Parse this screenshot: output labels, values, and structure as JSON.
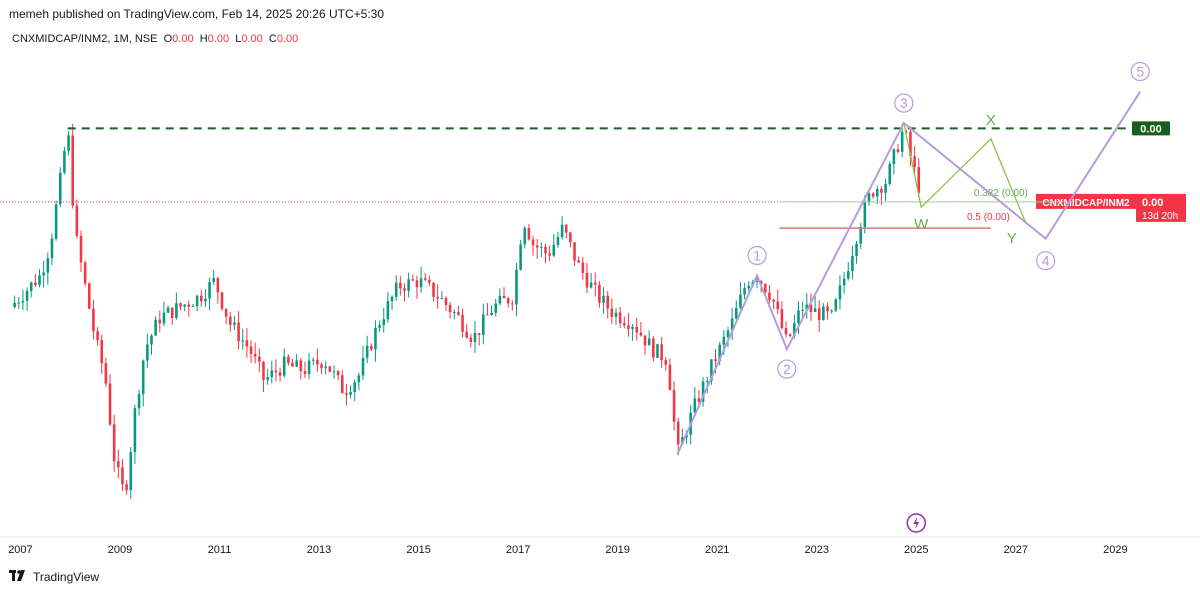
{
  "header": {
    "published": "memeh published on TradingView.com, Feb 14, 2025 20:26 UTC+5:30"
  },
  "legend": {
    "symbol": "CNXMIDCAP/INM2, 1M, NSE",
    "o_label": "O",
    "o_value": "0.00",
    "h_label": "H",
    "h_value": "0.00",
    "l_label": "L",
    "l_value": "0.00",
    "c_label": "C",
    "c_value": "0.00"
  },
  "footer": {
    "brand": "TradingView",
    "logo": "tradingview-logo-icon"
  },
  "colors": {
    "up": "#089981",
    "down": "#f23645",
    "wave": "#b39ddb",
    "wxy": "#6aa84f",
    "dashed": "#1b5e20",
    "price_label_bg": "#f23645",
    "fib_line": "#e57373"
  },
  "chart_data": {
    "type": "candlestick",
    "interval": "1M",
    "x_ticks": [
      "2007",
      "2009",
      "2011",
      "2013",
      "2015",
      "2017",
      "2019",
      "2021",
      "2023",
      "2025",
      "2027",
      "2029"
    ],
    "x_range": [
      2006.75,
      2030.5
    ],
    "y_scale": "relative (values read as approximate price-level index, no y tick values printed)",
    "series": [
      {
        "t": 2006.8,
        "close": 58
      },
      {
        "t": 2007.0,
        "close": 60
      },
      {
        "t": 2007.2,
        "close": 62
      },
      {
        "t": 2007.4,
        "close": 64
      },
      {
        "t": 2007.6,
        "close": 70
      },
      {
        "t": 2007.8,
        "close": 82
      },
      {
        "t": 2007.95,
        "close": 92
      },
      {
        "t": 2008.1,
        "close": 72
      },
      {
        "t": 2008.3,
        "close": 62
      },
      {
        "t": 2008.5,
        "close": 52
      },
      {
        "t": 2008.7,
        "close": 45
      },
      {
        "t": 2008.9,
        "close": 28
      },
      {
        "t": 2009.1,
        "close": 22
      },
      {
        "t": 2009.3,
        "close": 38
      },
      {
        "t": 2009.5,
        "close": 50
      },
      {
        "t": 2009.8,
        "close": 56
      },
      {
        "t": 2010.2,
        "close": 58
      },
      {
        "t": 2010.6,
        "close": 60
      },
      {
        "t": 2010.9,
        "close": 63
      },
      {
        "t": 2011.2,
        "close": 55
      },
      {
        "t": 2011.6,
        "close": 50
      },
      {
        "t": 2011.9,
        "close": 44
      },
      {
        "t": 2012.3,
        "close": 47
      },
      {
        "t": 2012.7,
        "close": 46
      },
      {
        "t": 2013.1,
        "close": 48
      },
      {
        "t": 2013.5,
        "close": 42
      },
      {
        "t": 2013.8,
        "close": 45
      },
      {
        "t": 2014.2,
        "close": 55
      },
      {
        "t": 2014.6,
        "close": 62
      },
      {
        "t": 2015.0,
        "close": 63
      },
      {
        "t": 2015.4,
        "close": 60
      },
      {
        "t": 2015.8,
        "close": 56
      },
      {
        "t": 2016.1,
        "close": 52
      },
      {
        "t": 2016.5,
        "close": 58
      },
      {
        "t": 2016.9,
        "close": 60
      },
      {
        "t": 2017.1,
        "close": 75
      },
      {
        "t": 2017.3,
        "close": 70
      },
      {
        "t": 2017.6,
        "close": 68
      },
      {
        "t": 2017.9,
        "close": 73
      },
      {
        "t": 2018.2,
        "close": 66
      },
      {
        "t": 2018.6,
        "close": 60
      },
      {
        "t": 2018.9,
        "close": 57
      },
      {
        "t": 2019.3,
        "close": 55
      },
      {
        "t": 2019.7,
        "close": 50
      },
      {
        "t": 2020.0,
        "close": 48
      },
      {
        "t": 2020.2,
        "close": 30
      },
      {
        "t": 2020.5,
        "close": 38
      },
      {
        "t": 2020.9,
        "close": 47
      },
      {
        "t": 2021.3,
        "close": 55
      },
      {
        "t": 2021.6,
        "close": 63
      },
      {
        "t": 2021.8,
        "close": 64
      },
      {
        "t": 2022.1,
        "close": 60
      },
      {
        "t": 2022.4,
        "close": 51
      },
      {
        "t": 2022.7,
        "close": 58
      },
      {
        "t": 2023.0,
        "close": 57
      },
      {
        "t": 2023.3,
        "close": 56
      },
      {
        "t": 2023.6,
        "close": 65
      },
      {
        "t": 2023.9,
        "close": 75
      },
      {
        "t": 2024.1,
        "close": 80
      },
      {
        "t": 2024.4,
        "close": 82
      },
      {
        "t": 2024.6,
        "close": 88
      },
      {
        "t": 2024.75,
        "close": 92
      },
      {
        "t": 2024.9,
        "close": 86
      },
      {
        "t": 2025.05,
        "close": 81
      },
      {
        "t": 2025.12,
        "close": 78
      }
    ],
    "horizontal_levels": [
      {
        "name": "prior high",
        "value": 92,
        "style": "dashed",
        "label": "0.00"
      }
    ],
    "fib_levels": [
      {
        "ratio": "0.382",
        "label": "0.382 (0.00)",
        "value": 78
      },
      {
        "ratio": "0.5",
        "label": "0.5 (0.00)",
        "value": 73
      }
    ],
    "elliott_wave": {
      "labels": [
        "1",
        "2",
        "3",
        "4",
        "5"
      ],
      "points": [
        {
          "label": "start",
          "t": 2020.2,
          "value": 30
        },
        {
          "label": "1",
          "t": 2021.8,
          "value": 64
        },
        {
          "label": "2",
          "t": 2022.4,
          "value": 50
        },
        {
          "label": "3",
          "t": 2024.75,
          "value": 93
        },
        {
          "label": "4",
          "t": 2027.6,
          "value": 71
        },
        {
          "label": "5",
          "t": 2029.5,
          "value": 99
        }
      ]
    },
    "correction_wxy": {
      "labels": [
        "W",
        "X",
        "Y"
      ],
      "points": [
        {
          "label": "3",
          "t": 2024.75,
          "value": 93
        },
        {
          "label": "W",
          "t": 2025.1,
          "value": 77
        },
        {
          "label": "X",
          "t": 2026.5,
          "value": 90
        },
        {
          "label": "Y",
          "t": 2027.2,
          "value": 74
        }
      ]
    },
    "price_label": {
      "symbol": "CNXMIDCAP/INM2",
      "value": "0.00",
      "countdown": "13d 20h"
    },
    "current_price_line": 78,
    "events_marker": "lightning-icon"
  }
}
